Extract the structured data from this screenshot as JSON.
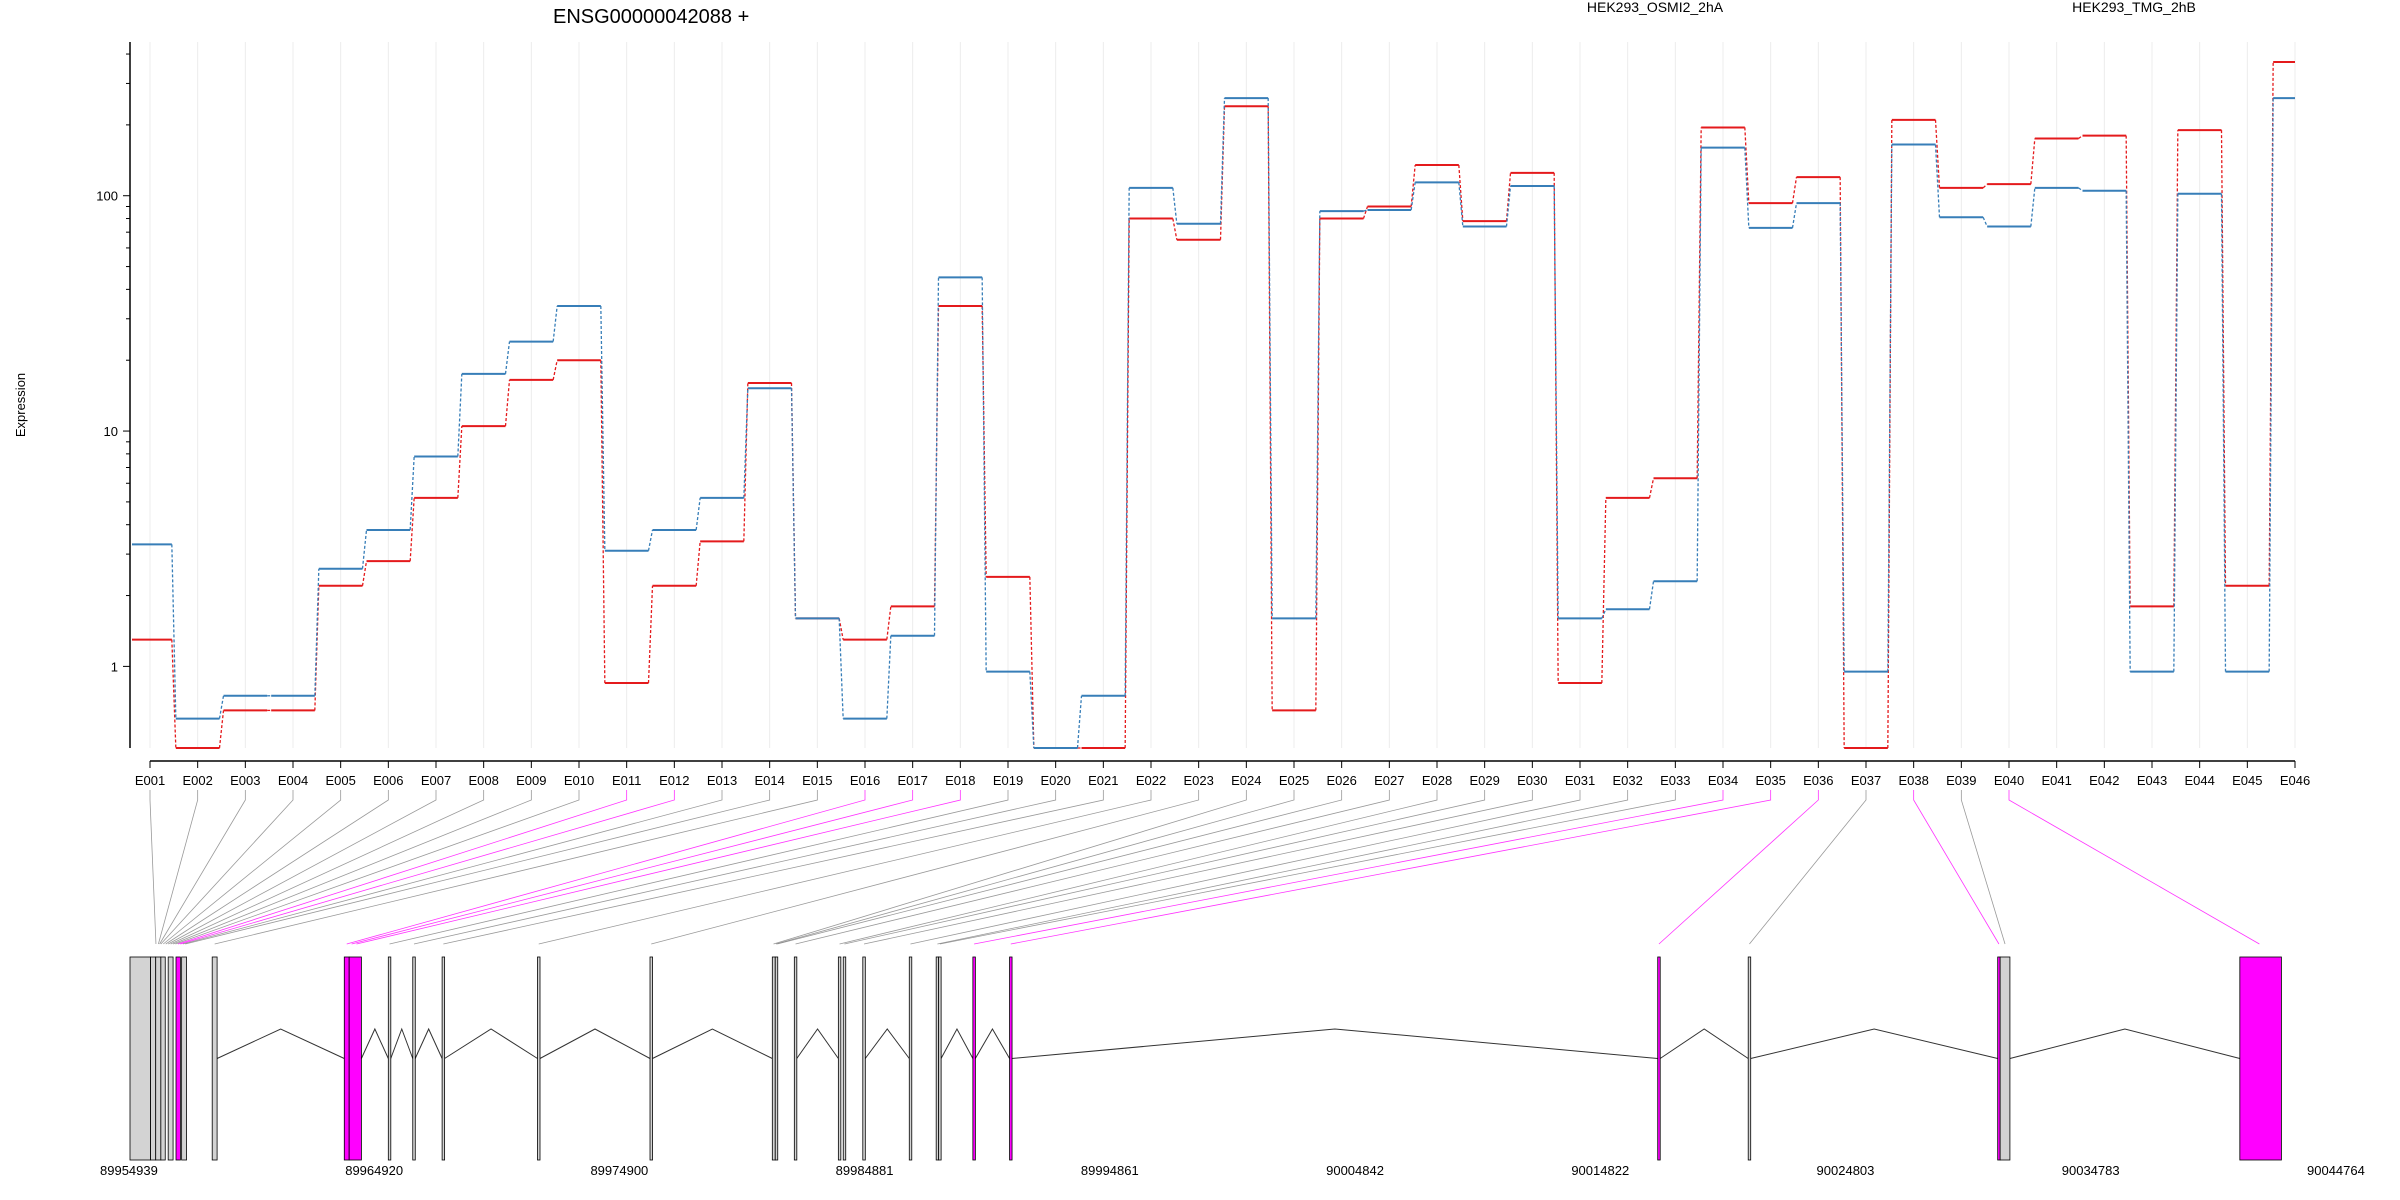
{
  "chart_data": {
    "type": "line",
    "title": "ENSG00000042088 +",
    "ylabel": "Expression",
    "y_scale": "log",
    "ylim": [
      0.45,
      450
    ],
    "y_ticks": [
      "1",
      "10",
      "100"
    ],
    "y_tick_values": [
      1,
      10,
      100
    ],
    "categories": [
      "E001",
      "E002",
      "E003",
      "E004",
      "E005",
      "E006",
      "E007",
      "E008",
      "E009",
      "E010",
      "E011",
      "E012",
      "E013",
      "E014",
      "E015",
      "E016",
      "E017",
      "E018",
      "E019",
      "E020",
      "E021",
      "E022",
      "E023",
      "E024",
      "E025",
      "E026",
      "E027",
      "E028",
      "E029",
      "E030",
      "E031",
      "E032",
      "E033",
      "E034",
      "E035",
      "E036",
      "E037",
      "E038",
      "E039",
      "E040",
      "E041",
      "E042",
      "E043",
      "E044",
      "E045",
      "E046"
    ],
    "series": [
      {
        "name": "HEK293_OSMI2_2hA",
        "color": "#e41a1c",
        "values": [
          1.3,
          0.45,
          0.65,
          0.65,
          2.2,
          2.8,
          5.2,
          10.5,
          16.5,
          20,
          0.85,
          2.2,
          3.4,
          16,
          1.6,
          1.3,
          1.8,
          34,
          2.4,
          0.45,
          0.45,
          80,
          65,
          240,
          0.65,
          80,
          90,
          135,
          78,
          125,
          0.85,
          5.2,
          6.3,
          195,
          93,
          120,
          0.45,
          210,
          108,
          112,
          175,
          180,
          1.8,
          190,
          2.2,
          370
        ]
      },
      {
        "name": "HEK293_TMG_2hB",
        "color": "#377eb8",
        "values": [
          3.3,
          0.6,
          0.75,
          0.75,
          2.6,
          3.8,
          7.8,
          17.5,
          24,
          34,
          3.1,
          3.8,
          5.2,
          15.2,
          1.6,
          0.6,
          1.35,
          45,
          0.95,
          0.45,
          0.75,
          108,
          76,
          260,
          1.6,
          86,
          87,
          114,
          74,
          110,
          1.6,
          1.75,
          2.3,
          160,
          73,
          93,
          0.95,
          165,
          81,
          74,
          108,
          105,
          0.95,
          102,
          0.95,
          260
        ]
      }
    ],
    "gene_model": {
      "coordinate_ticks": [
        "89954939",
        "89964920",
        "89974900",
        "89984881",
        "89994861",
        "90004842",
        "90014822",
        "90024803",
        "90034783",
        "90044764"
      ],
      "range": [
        89954939,
        90044764
      ],
      "highlight_color": "#ff00ff",
      "exons": [
        {
          "s": 89954939,
          "e": 89955780,
          "hl": false
        },
        {
          "s": 89955780,
          "e": 89955990,
          "hl": false
        },
        {
          "s": 89955990,
          "e": 89956200,
          "hl": false
        },
        {
          "s": 89956200,
          "e": 89956380,
          "hl": false
        },
        {
          "s": 89956500,
          "e": 89956700,
          "hl": false
        },
        {
          "s": 89956820,
          "e": 89957000,
          "hl": true
        },
        {
          "s": 89957050,
          "e": 89957250,
          "hl": false
        },
        {
          "s": 89958300,
          "e": 89958500,
          "hl": false
        },
        {
          "s": 89963700,
          "e": 89963900,
          "hl": true
        },
        {
          "s": 89963900,
          "e": 89964400,
          "hl": true
        },
        {
          "s": 89965500,
          "e": 89965600,
          "hl": false
        },
        {
          "s": 89966500,
          "e": 89966600,
          "hl": false
        },
        {
          "s": 89967700,
          "e": 89967800,
          "hl": false
        },
        {
          "s": 89971600,
          "e": 89971700,
          "hl": false
        },
        {
          "s": 89976200,
          "e": 89976300,
          "hl": false
        },
        {
          "s": 89981200,
          "e": 89981320,
          "hl": false
        },
        {
          "s": 89981320,
          "e": 89981420,
          "hl": false
        },
        {
          "s": 89982100,
          "e": 89982200,
          "hl": false
        },
        {
          "s": 89983900,
          "e": 89984000,
          "hl": false
        },
        {
          "s": 89984100,
          "e": 89984200,
          "hl": false
        },
        {
          "s": 89984900,
          "e": 89985000,
          "hl": false
        },
        {
          "s": 89986800,
          "e": 89986900,
          "hl": false
        },
        {
          "s": 89987900,
          "e": 89988000,
          "hl": false
        },
        {
          "s": 89988000,
          "e": 89988100,
          "hl": false
        },
        {
          "s": 89989400,
          "e": 89989500,
          "hl": true
        },
        {
          "s": 89990900,
          "e": 89991000,
          "hl": true
        },
        {
          "s": 90017400,
          "e": 90017500,
          "hl": true
        },
        {
          "s": 90021100,
          "e": 90021200,
          "hl": false
        },
        {
          "s": 90031300,
          "e": 90031400,
          "hl": true
        },
        {
          "s": 90031400,
          "e": 90031800,
          "hl": false
        },
        {
          "s": 90041200,
          "e": 90042900,
          "hl": true
        }
      ],
      "introns": [
        [
          89958500,
          89963700
        ],
        [
          89964400,
          89965500
        ],
        [
          89965600,
          89966500
        ],
        [
          89966600,
          89967700
        ],
        [
          89967800,
          89971600
        ],
        [
          89971700,
          89976200
        ],
        [
          89976300,
          89981200
        ],
        [
          89982200,
          89983900
        ],
        [
          89985000,
          89986800
        ],
        [
          89988100,
          89989400
        ],
        [
          89989500,
          89990900
        ],
        [
          89991000,
          90017400
        ],
        [
          90017500,
          90021100
        ],
        [
          90021200,
          90031300
        ],
        [
          90031800,
          90041200
        ]
      ],
      "exon_map": [
        {
          "to": 89956000,
          "hl": false
        },
        {
          "to": 89956100,
          "hl": false
        },
        {
          "to": 89956150,
          "hl": false
        },
        {
          "to": 89956200,
          "hl": false
        },
        {
          "to": 89956300,
          "hl": false
        },
        {
          "to": 89956400,
          "hl": false
        },
        {
          "to": 89956500,
          "hl": false
        },
        {
          "to": 89956600,
          "hl": false
        },
        {
          "to": 89956700,
          "hl": false
        },
        {
          "to": 89956800,
          "hl": false
        },
        {
          "to": 89956900,
          "hl": true
        },
        {
          "to": 89957000,
          "hl": true
        },
        {
          "to": 89957100,
          "hl": false
        },
        {
          "to": 89957200,
          "hl": false
        },
        {
          "to": 89958400,
          "hl": false
        },
        {
          "to": 89963800,
          "hl": true
        },
        {
          "to": 89964000,
          "hl": true
        },
        {
          "to": 89964200,
          "hl": true
        },
        {
          "to": 89965550,
          "hl": false
        },
        {
          "to": 89966550,
          "hl": false
        },
        {
          "to": 89967750,
          "hl": false
        },
        {
          "to": 89971650,
          "hl": false
        },
        {
          "to": 89976250,
          "hl": false
        },
        {
          "to": 89981250,
          "hl": false
        },
        {
          "to": 89981350,
          "hl": false
        },
        {
          "to": 89981400,
          "hl": false
        },
        {
          "to": 89982150,
          "hl": false
        },
        {
          "to": 89983950,
          "hl": false
        },
        {
          "to": 89984150,
          "hl": false
        },
        {
          "to": 89984950,
          "hl": false
        },
        {
          "to": 89986850,
          "hl": false
        },
        {
          "to": 89987950,
          "hl": false
        },
        {
          "to": 89988050,
          "hl": false
        },
        {
          "to": 89989450,
          "hl": true
        },
        {
          "to": 89990950,
          "hl": true
        },
        {
          "to": 90017450,
          "hl": true
        },
        {
          "to": 90021150,
          "hl": false
        },
        {
          "to": 90031350,
          "hl": true
        },
        {
          "to": 90031600,
          "hl": false
        },
        {
          "to": 90042000,
          "hl": true
        }
      ]
    }
  }
}
